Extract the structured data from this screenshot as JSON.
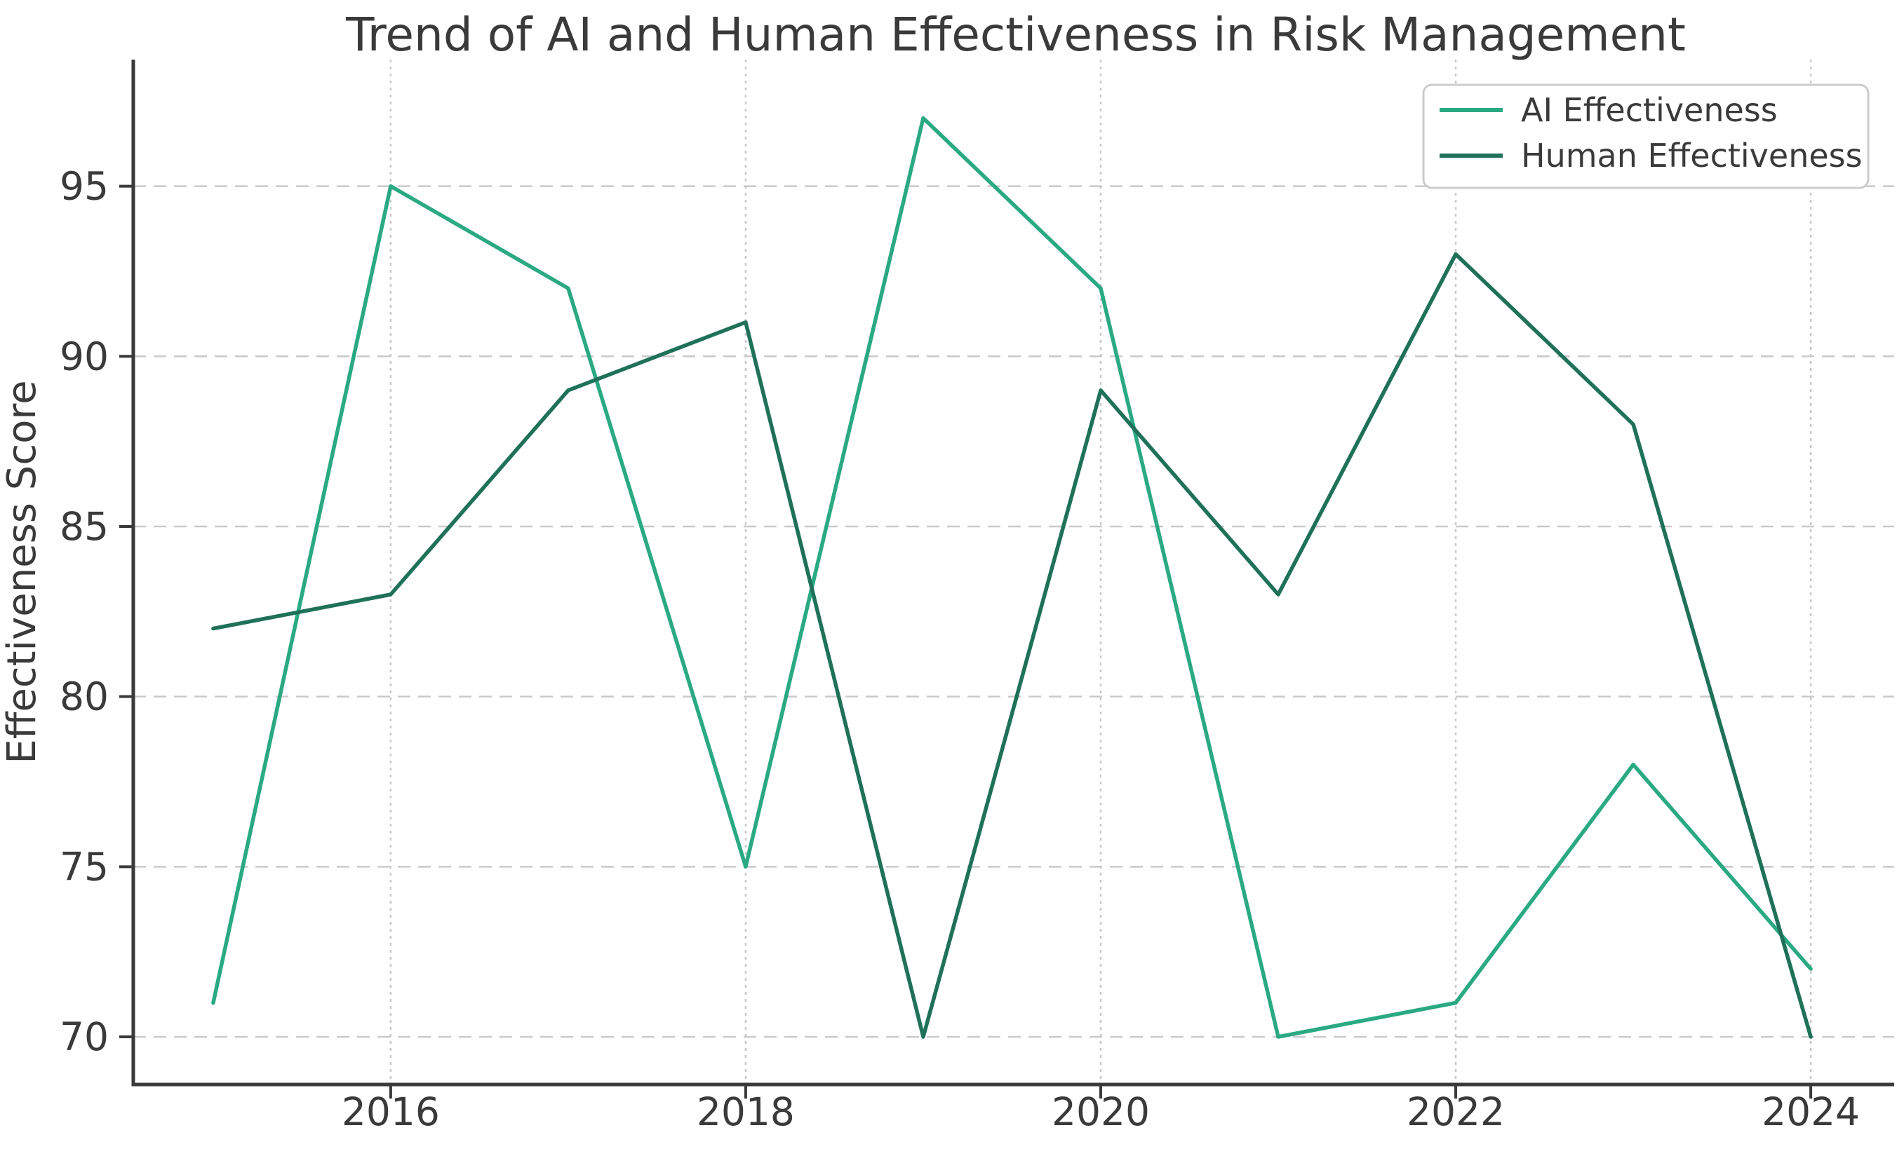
{
  "chart_data": {
    "type": "line",
    "title": "Trend of AI and Human Effectiveness in Risk Management",
    "xlabel": "",
    "ylabel": "Effectiveness Score",
    "x": [
      2015,
      2016,
      2017,
      2018,
      2019,
      2020,
      2021,
      2022,
      2023,
      2024
    ],
    "series": [
      {
        "name": "AI Effectiveness",
        "color": "#2aa982",
        "values": [
          71,
          95,
          92,
          75,
          97,
          92,
          70,
          71,
          78,
          72
        ]
      },
      {
        "name": "Human Effectiveness",
        "color": "#1f7158",
        "values": [
          82,
          83,
          89,
          91,
          70,
          89,
          83,
          93,
          88,
          70
        ]
      }
    ],
    "xticks": [
      2016,
      2018,
      2020,
      2022,
      2024
    ],
    "yticks": [
      70,
      75,
      80,
      85,
      90,
      95
    ],
    "xlim": [
      2014.55,
      2024.47
    ],
    "ylim": [
      68.6,
      98.72
    ],
    "grid": true,
    "grid_style": "dashed",
    "legend_position": "upper right"
  },
  "colors": {
    "ai_line": "#2aa982",
    "human_line": "#1f7158",
    "grid": "#c9c9c9",
    "text": "#3a3a3a",
    "spine": "#3a3a3a",
    "legend_border": "#cccccc",
    "background": "#ffffff"
  }
}
